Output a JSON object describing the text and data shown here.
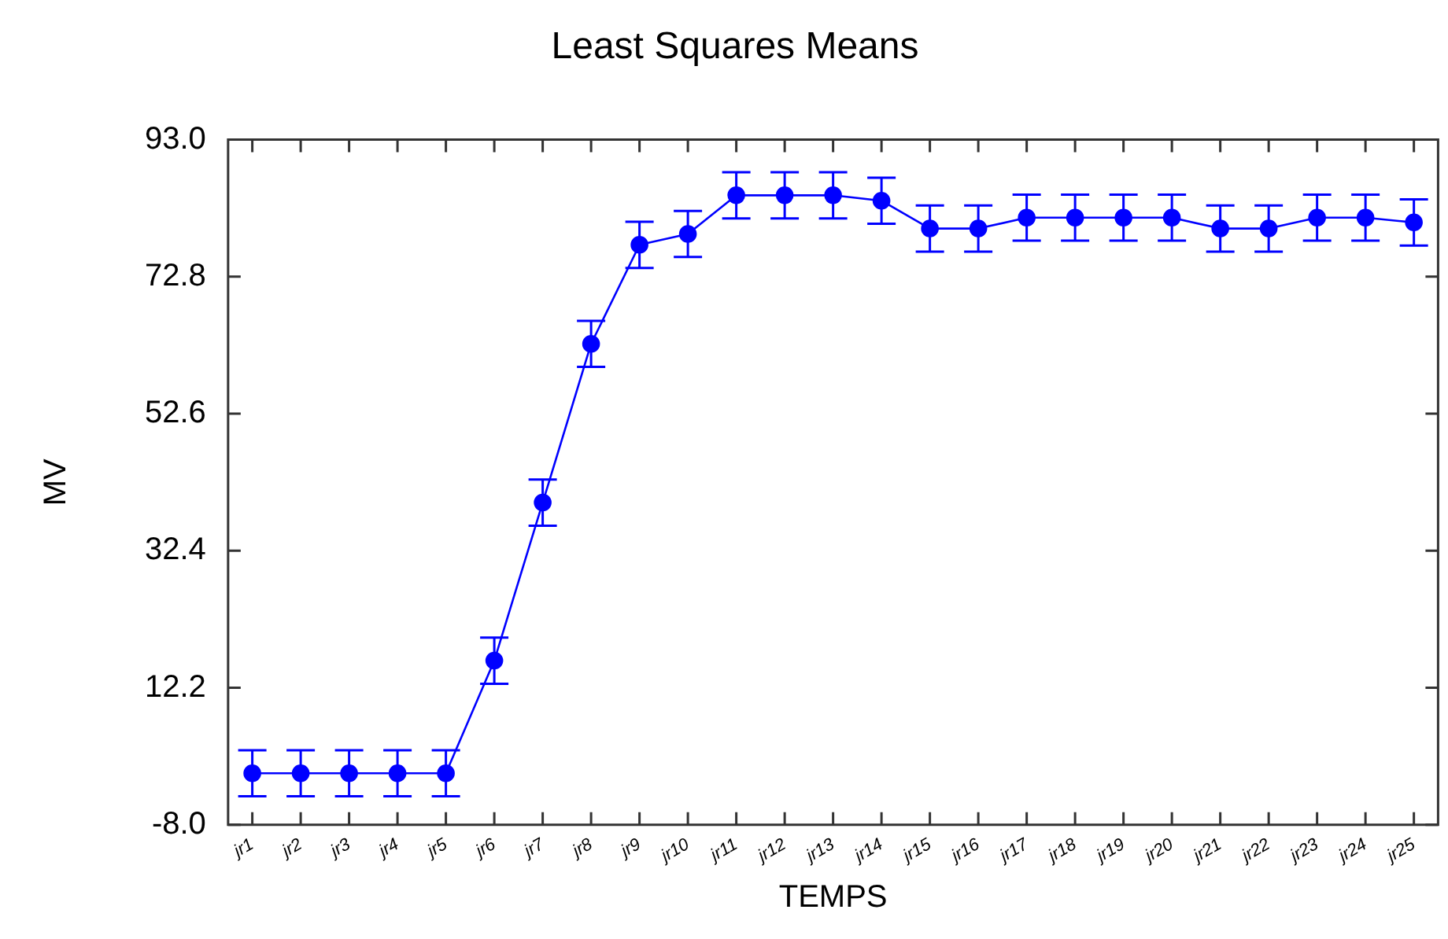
{
  "chart_data": {
    "type": "line",
    "title": "Least Squares Means",
    "xlabel": "TEMPS",
    "ylabel": "MV",
    "categories": [
      "jr1",
      "jr2",
      "jr3",
      "jr4",
      "jr5",
      "jr6",
      "jr7",
      "jr8",
      "jr9",
      "jr10",
      "jr11",
      "jr12",
      "jr13",
      "jr14",
      "jr15",
      "jr16",
      "jr17",
      "jr18",
      "jr19",
      "jr20",
      "jr21",
      "jr22",
      "jr23",
      "jr24",
      "jr25"
    ],
    "series": [
      {
        "color": "#0000ff",
        "values": [
          -0.4,
          -0.4,
          -0.4,
          -0.4,
          -0.4,
          16.2,
          39.5,
          62.9,
          77.5,
          79.1,
          84.8,
          84.8,
          84.8,
          84.0,
          79.9,
          79.9,
          81.5,
          81.5,
          81.5,
          81.5,
          79.9,
          79.9,
          81.5,
          81.5,
          80.8
        ],
        "errors": [
          3.4,
          3.4,
          3.4,
          3.4,
          3.4,
          3.4,
          3.4,
          3.4,
          3.4,
          3.4,
          3.4,
          3.4,
          3.4,
          3.4,
          3.4,
          3.4,
          3.4,
          3.4,
          3.4,
          3.4,
          3.4,
          3.4,
          3.4,
          3.4,
          3.4
        ]
      }
    ],
    "ylim": [
      -8.0,
      93.0
    ],
    "yticks": [
      {
        "value": -8.0,
        "label": "-8.0"
      },
      {
        "value": 12.2,
        "label": "12.2"
      },
      {
        "value": 32.4,
        "label": "32.4"
      },
      {
        "value": 52.6,
        "label": "52.6"
      },
      {
        "value": 72.8,
        "label": "72.8"
      },
      {
        "value": 93.0,
        "label": "93.0"
      }
    ],
    "grid": false,
    "legend": false,
    "marker": "circle",
    "line_style": "solid"
  }
}
